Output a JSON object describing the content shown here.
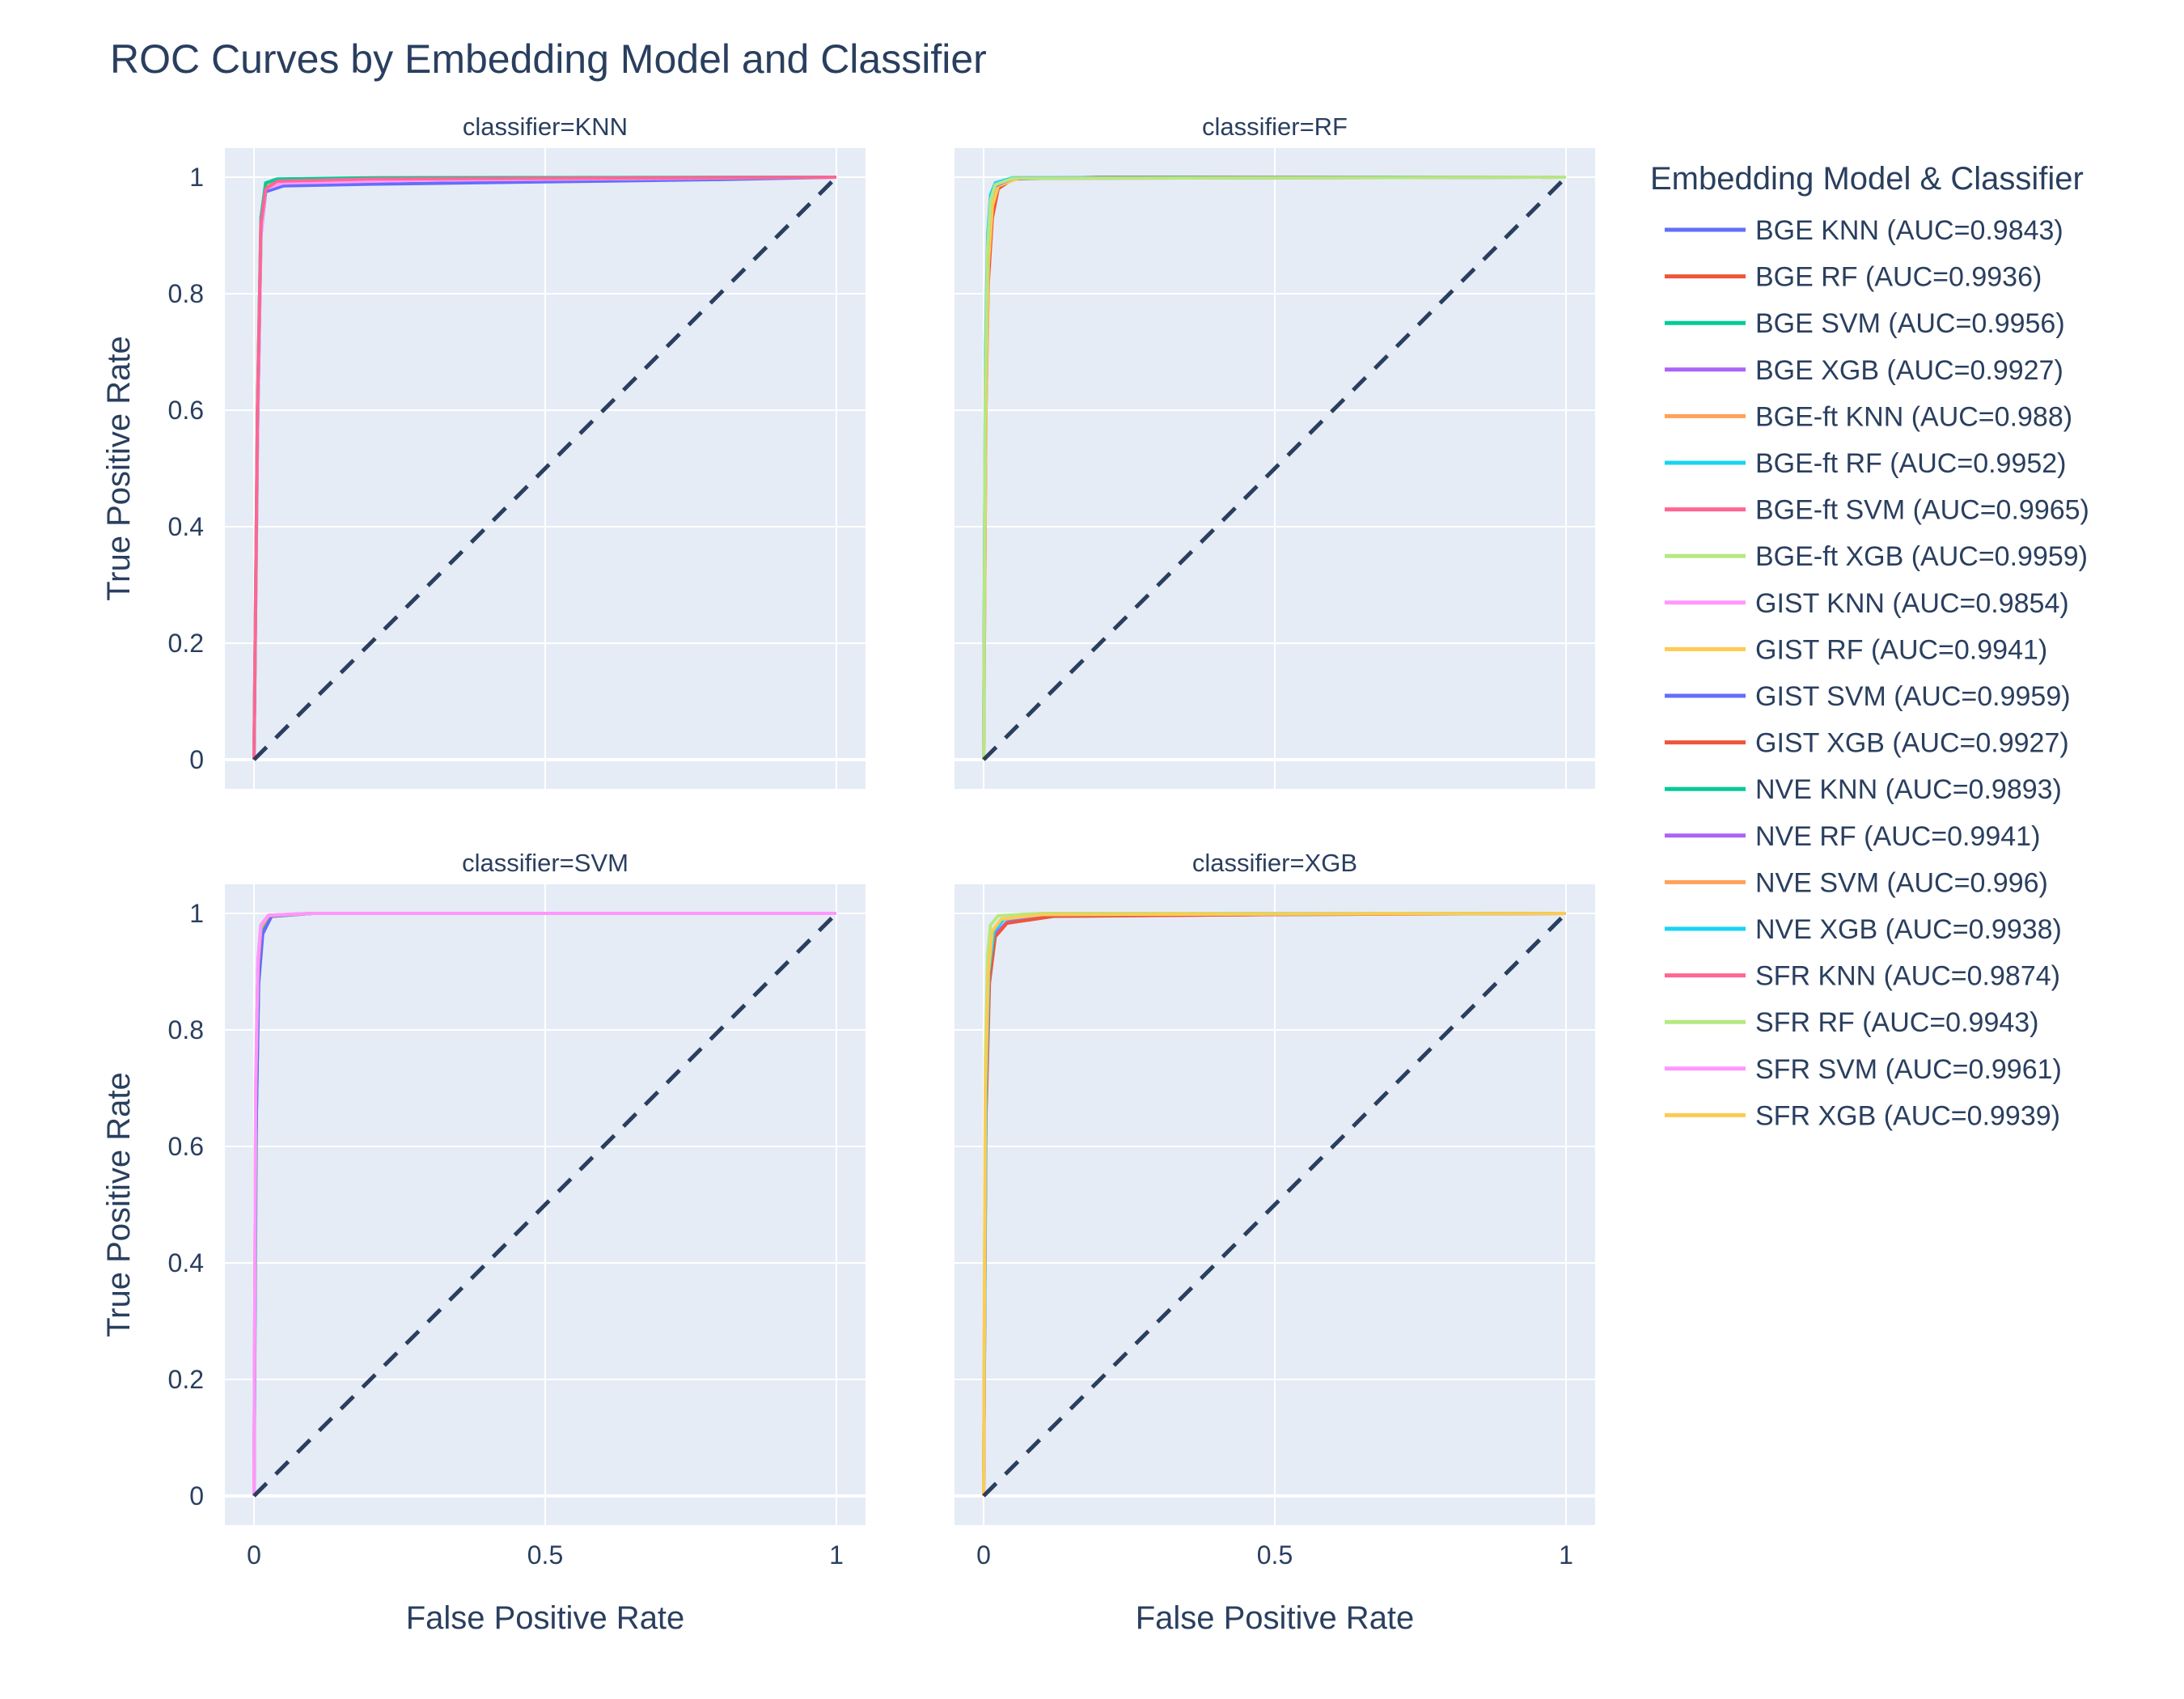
{
  "chart_data": {
    "type": "line",
    "title": "ROC Curves by Embedding Model and Classifier",
    "xlabel": "False Positive Rate",
    "ylabel": "True Positive Rate",
    "xlim": [
      -0.05,
      1.05
    ],
    "ylim": [
      -0.05,
      1.05
    ],
    "x_ticks": [
      0,
      0.5,
      1
    ],
    "y_ticks": [
      0,
      0.2,
      0.4,
      0.6,
      0.8,
      1
    ],
    "x_tick_labels": [
      "0",
      "0.5",
      "1"
    ],
    "y_tick_labels": [
      "0",
      "0.2",
      "0.4",
      "0.6",
      "0.8",
      "1"
    ],
    "grid": true,
    "legend_title": "Embedding Model & Classifier",
    "legend_position": "right",
    "diagonal_reference": {
      "x": [
        0,
        1
      ],
      "y": [
        0,
        1
      ],
      "style": "dashed",
      "color": "#2a3f5f"
    },
    "panels": [
      {
        "label": "classifier=KNN",
        "classifier": "KNN"
      },
      {
        "label": "classifier=RF",
        "classifier": "RF"
      },
      {
        "label": "classifier=SVM",
        "classifier": "SVM"
      },
      {
        "label": "classifier=XGB",
        "classifier": "XGB"
      }
    ],
    "series": [
      {
        "name": "BGE KNN (AUC=0.9843)",
        "classifier": "KNN",
        "color": "#636efa",
        "x": [
          0,
          0.006,
          0.012,
          0.02,
          0.05,
          0.2,
          0.5,
          0.8,
          1
        ],
        "y": [
          0,
          0.55,
          0.9,
          0.975,
          0.985,
          0.988,
          0.992,
          0.996,
          1
        ]
      },
      {
        "name": "BGE RF (AUC=0.9936)",
        "classifier": "RF",
        "color": "#EF553B",
        "x": [
          0,
          0.004,
          0.008,
          0.015,
          0.025,
          0.05,
          0.2,
          1
        ],
        "y": [
          0,
          0.6,
          0.82,
          0.93,
          0.98,
          0.997,
          1,
          1
        ]
      },
      {
        "name": "BGE SVM (AUC=0.9956)",
        "classifier": "SVM",
        "color": "#00cc96",
        "x": [
          0,
          0.004,
          0.008,
          0.015,
          0.03,
          0.1,
          1
        ],
        "y": [
          0,
          0.65,
          0.9,
          0.97,
          0.995,
          1,
          1
        ]
      },
      {
        "name": "BGE XGB (AUC=0.9927)",
        "classifier": "XGB",
        "color": "#ab63fa",
        "x": [
          0,
          0.004,
          0.01,
          0.02,
          0.04,
          0.1,
          0.5,
          1
        ],
        "y": [
          0,
          0.7,
          0.9,
          0.965,
          0.985,
          0.995,
          0.998,
          1
        ]
      },
      {
        "name": "BGE-ft KNN (AUC=0.988)",
        "classifier": "KNN",
        "color": "#FFA15A",
        "x": [
          0,
          0.006,
          0.012,
          0.02,
          0.04,
          0.2,
          1
        ],
        "y": [
          0,
          0.6,
          0.92,
          0.985,
          0.995,
          0.998,
          1
        ]
      },
      {
        "name": "BGE-ft RF (AUC=0.9952)",
        "classifier": "RF",
        "color": "#19d3f3",
        "x": [
          0,
          0.003,
          0.007,
          0.012,
          0.02,
          0.05,
          1
        ],
        "y": [
          0,
          0.7,
          0.9,
          0.97,
          0.99,
          0.999,
          1
        ]
      },
      {
        "name": "BGE-ft SVM (AUC=0.9965)",
        "classifier": "SVM",
        "color": "#FF6692",
        "x": [
          0,
          0.003,
          0.007,
          0.012,
          0.025,
          0.1,
          1
        ],
        "y": [
          0,
          0.7,
          0.92,
          0.98,
          0.997,
          1,
          1
        ]
      },
      {
        "name": "BGE-ft XGB (AUC=0.9959)",
        "classifier": "XGB",
        "color": "#B6E880",
        "x": [
          0,
          0.003,
          0.007,
          0.012,
          0.025,
          0.1,
          1
        ],
        "y": [
          0,
          0.75,
          0.93,
          0.98,
          0.996,
          1,
          1
        ]
      },
      {
        "name": "GIST KNN (AUC=0.9854)",
        "classifier": "KNN",
        "color": "#FF97FF",
        "x": [
          0,
          0.006,
          0.012,
          0.02,
          0.05,
          0.3,
          1
        ],
        "y": [
          0,
          0.55,
          0.9,
          0.98,
          0.99,
          0.995,
          1
        ]
      },
      {
        "name": "GIST RF (AUC=0.9941)",
        "classifier": "RF",
        "color": "#FECB52",
        "x": [
          0,
          0.004,
          0.008,
          0.015,
          0.025,
          0.06,
          1
        ],
        "y": [
          0,
          0.6,
          0.85,
          0.95,
          0.985,
          0.998,
          1
        ]
      },
      {
        "name": "GIST SVM (AUC=0.9959)",
        "classifier": "SVM",
        "color": "#636efa",
        "x": [
          0,
          0.003,
          0.008,
          0.015,
          0.03,
          0.1,
          1
        ],
        "y": [
          0,
          0.6,
          0.88,
          0.965,
          0.995,
          1,
          1
        ]
      },
      {
        "name": "GIST XGB (AUC=0.9927)",
        "classifier": "XGB",
        "color": "#EF553B",
        "x": [
          0,
          0.004,
          0.01,
          0.02,
          0.04,
          0.12,
          0.5,
          1
        ],
        "y": [
          0,
          0.65,
          0.88,
          0.96,
          0.983,
          0.995,
          0.998,
          1
        ]
      },
      {
        "name": "NVE KNN (AUC=0.9893)",
        "classifier": "KNN",
        "color": "#00cc96",
        "x": [
          0,
          0.006,
          0.012,
          0.02,
          0.04,
          0.2,
          1
        ],
        "y": [
          0,
          0.6,
          0.93,
          0.99,
          0.997,
          0.999,
          1
        ]
      },
      {
        "name": "NVE RF (AUC=0.9941)",
        "classifier": "RF",
        "color": "#ab63fa",
        "x": [
          0,
          0.003,
          0.007,
          0.012,
          0.02,
          0.05,
          1
        ],
        "y": [
          0,
          0.65,
          0.88,
          0.96,
          0.985,
          0.998,
          1
        ]
      },
      {
        "name": "NVE SVM (AUC=0.996)",
        "classifier": "SVM",
        "color": "#FFA15A",
        "x": [
          0,
          0.003,
          0.007,
          0.012,
          0.025,
          0.1,
          1
        ],
        "y": [
          0,
          0.7,
          0.91,
          0.975,
          0.996,
          1,
          1
        ]
      },
      {
        "name": "NVE XGB (AUC=0.9938)",
        "classifier": "XGB",
        "color": "#19d3f3",
        "x": [
          0,
          0.004,
          0.009,
          0.018,
          0.035,
          0.1,
          1
        ],
        "y": [
          0,
          0.7,
          0.9,
          0.97,
          0.99,
          0.998,
          1
        ]
      },
      {
        "name": "SFR KNN (AUC=0.9874)",
        "classifier": "KNN",
        "color": "#FF6692",
        "x": [
          0,
          0.006,
          0.012,
          0.02,
          0.04,
          0.2,
          1
        ],
        "y": [
          0,
          0.6,
          0.92,
          0.98,
          0.993,
          0.997,
          1
        ]
      },
      {
        "name": "SFR RF (AUC=0.9943)",
        "classifier": "RF",
        "color": "#B6E880",
        "x": [
          0,
          0.003,
          0.007,
          0.012,
          0.02,
          0.05,
          1
        ],
        "y": [
          0,
          0.65,
          0.88,
          0.96,
          0.987,
          0.998,
          1
        ]
      },
      {
        "name": "SFR SVM (AUC=0.9961)",
        "classifier": "SVM",
        "color": "#FF97FF",
        "x": [
          0,
          0.003,
          0.007,
          0.012,
          0.025,
          0.1,
          1
        ],
        "y": [
          0,
          0.72,
          0.92,
          0.98,
          0.997,
          1,
          1
        ]
      },
      {
        "name": "SFR XGB (AUC=0.9939)",
        "classifier": "XGB",
        "color": "#FECB52",
        "x": [
          0,
          0.003,
          0.008,
          0.015,
          0.03,
          0.1,
          1
        ],
        "y": [
          0,
          0.7,
          0.9,
          0.97,
          0.99,
          0.998,
          1
        ]
      }
    ]
  }
}
